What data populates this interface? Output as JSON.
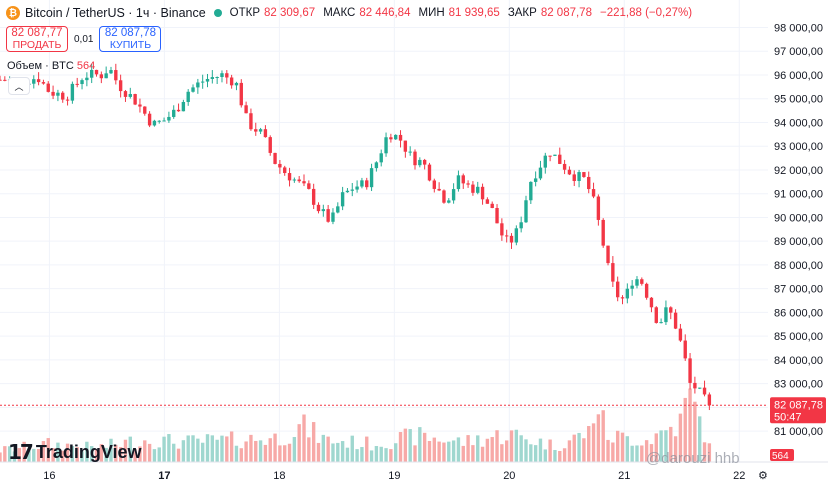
{
  "header": {
    "coin_glyph": "₿",
    "symbol": "Bitcoin / TetherUS · 1ч · Binance",
    "status_color": "#22ab94",
    "open_label": "ОТКР",
    "open_value": "82 309,67",
    "high_label": "МАКС",
    "high_value": "82 446,84",
    "low_label": "МИН",
    "low_value": "81 939,65",
    "close_label": "ЗАКР",
    "close_value": "82 087,78",
    "change_value": "−221,88 (−0,27%)"
  },
  "trade": {
    "sell_price": "82 087,77",
    "sell_label": "ПРОДАТЬ",
    "spread": "0,01",
    "buy_price": "82 087,78",
    "buy_label": "КУПИТЬ"
  },
  "volume_label": {
    "text": "Объем · BTC",
    "value": "564"
  },
  "collapse_icon": "chevron-up-icon",
  "logo": {
    "text": "TradingView"
  },
  "watermark": "@darouzi hhb",
  "goto_icon": "gear-icon",
  "colors": {
    "up": "#22ab94",
    "down": "#f23645",
    "up_volume": "#9fd7cf",
    "down_volume": "#f7a9a7",
    "grid": "#f0f3fa"
  },
  "chart_data": {
    "type": "candlestick",
    "title": "Bitcoin / TetherUS · 1ч · Binance",
    "ylim": [
      80500,
      98400
    ],
    "xlim": [
      15.57,
      22.25
    ],
    "y_ticks": [
      81000,
      82000,
      83000,
      84000,
      85000,
      86000,
      87000,
      88000,
      89000,
      90000,
      91000,
      92000,
      93000,
      94000,
      95000,
      96000,
      97000,
      98000
    ],
    "y_tick_labels": [
      "81 000,00",
      "82 000,00",
      "83 000,00",
      "84 000,00",
      "85 000,00",
      "86 000,00",
      "87 000,00",
      "88 000,00",
      "89 000,00",
      "90 000,00",
      "91 000,00",
      "92 000,00",
      "93 000,00",
      "94 000,00",
      "95 000,00",
      "96 000,00",
      "97 000,00",
      "98 000,00"
    ],
    "x_ticks": [
      16,
      17,
      18,
      19,
      20,
      21,
      22
    ],
    "x_tick_labels": [
      "16",
      "17",
      "18",
      "19",
      "20",
      "21",
      "22"
    ],
    "x_tick_bold": [
      false,
      true,
      false,
      false,
      false,
      false,
      false
    ],
    "last_price": 82087.78,
    "last_price_label": "82 087,78",
    "countdown": "50:47",
    "last_volume_label": "564",
    "close_path": [
      [
        15.57,
        95800
      ],
      [
        15.75,
        95750
      ],
      [
        15.9,
        95900
      ],
      [
        16.0,
        95300
      ],
      [
        16.15,
        95100
      ],
      [
        16.3,
        96000
      ],
      [
        16.45,
        96000
      ],
      [
        16.52,
        96300
      ],
      [
        16.6,
        95600
      ],
      [
        16.75,
        94900
      ],
      [
        16.9,
        93900
      ],
      [
        17.0,
        94100
      ],
      [
        17.1,
        94500
      ],
      [
        17.2,
        95300
      ],
      [
        17.35,
        95800
      ],
      [
        17.5,
        96000
      ],
      [
        17.62,
        95700
      ],
      [
        17.72,
        94000
      ],
      [
        17.85,
        93500
      ],
      [
        17.95,
        92400
      ],
      [
        18.05,
        91900
      ],
      [
        18.15,
        91500
      ],
      [
        18.25,
        91100
      ],
      [
        18.35,
        90300
      ],
      [
        18.45,
        89800
      ],
      [
        18.55,
        90900
      ],
      [
        18.65,
        91300
      ],
      [
        18.75,
        91400
      ],
      [
        18.85,
        92400
      ],
      [
        18.95,
        93600
      ],
      [
        19.05,
        93300
      ],
      [
        19.15,
        92500
      ],
      [
        19.25,
        92300
      ],
      [
        19.35,
        91400
      ],
      [
        19.45,
        90700
      ],
      [
        19.55,
        91600
      ],
      [
        19.65,
        91300
      ],
      [
        19.75,
        91100
      ],
      [
        19.85,
        90300
      ],
      [
        19.95,
        89100
      ],
      [
        20.0,
        88900
      ],
      [
        20.08,
        89500
      ],
      [
        20.18,
        91500
      ],
      [
        20.28,
        92300
      ],
      [
        20.35,
        92800
      ],
      [
        20.45,
        92300
      ],
      [
        20.55,
        91800
      ],
      [
        20.65,
        91600
      ],
      [
        20.72,
        90900
      ],
      [
        20.8,
        89300
      ],
      [
        20.85,
        88000
      ],
      [
        20.92,
        86800
      ],
      [
        21.0,
        86500
      ],
      [
        21.08,
        87500
      ],
      [
        21.15,
        87300
      ],
      [
        21.22,
        86500
      ],
      [
        21.3,
        85500
      ],
      [
        21.38,
        86200
      ],
      [
        21.45,
        85400
      ],
      [
        21.52,
        84200
      ],
      [
        21.57,
        83000
      ],
      [
        21.63,
        82800
      ],
      [
        21.68,
        82400
      ],
      [
        21.74,
        82088
      ]
    ],
    "volume_path": [
      [
        15.6,
        12
      ],
      [
        16.0,
        18
      ],
      [
        16.4,
        14
      ],
      [
        16.8,
        22
      ],
      [
        17.2,
        20
      ],
      [
        17.6,
        22
      ],
      [
        18.0,
        24
      ],
      [
        18.2,
        36
      ],
      [
        18.4,
        22
      ],
      [
        18.8,
        18
      ],
      [
        19.2,
        26
      ],
      [
        19.6,
        20
      ],
      [
        20.0,
        28
      ],
      [
        20.4,
        16
      ],
      [
        20.7,
        30
      ],
      [
        20.75,
        64
      ],
      [
        20.85,
        26
      ],
      [
        21.2,
        22
      ],
      [
        21.5,
        40
      ],
      [
        21.55,
        68
      ],
      [
        21.7,
        30
      ],
      [
        21.75,
        10
      ]
    ]
  }
}
